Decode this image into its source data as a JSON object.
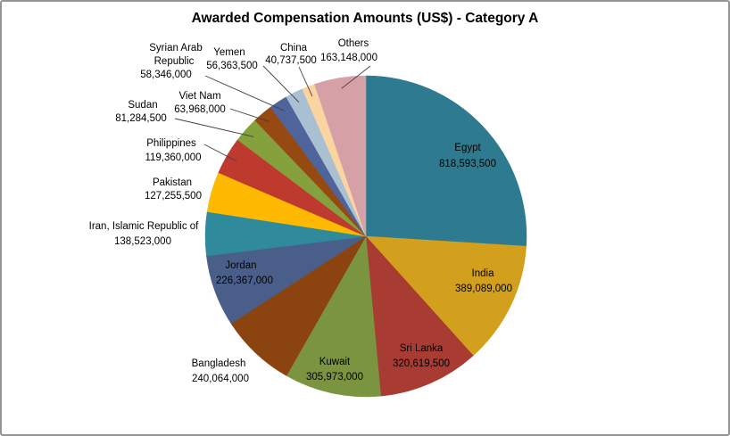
{
  "window": {
    "background": "#FFFFFF",
    "border_color": "#949494"
  },
  "chart_data": {
    "type": "pie",
    "title": "Awarded Compensation Amounts (US$) - Category A",
    "unit": "US$",
    "legend": "none",
    "data_labels": "category name + value",
    "value_format": "#,##0",
    "start_angle_deg": 0,
    "direction": "clockwise",
    "total": 3149692000,
    "label_text_color": "#000000",
    "leader_line_color": "#404040",
    "slices": [
      {
        "label": "Egypt",
        "value": 818593500,
        "color": "#2E7B91",
        "label_position": "inside",
        "leader_line": false
      },
      {
        "label": "India",
        "value": 389089000,
        "color": "#D3A01D",
        "label_position": "inside",
        "leader_line": false
      },
      {
        "label": "Sri Lanka",
        "value": 320619500,
        "color": "#A83C32",
        "label_position": "inside",
        "leader_line": false
      },
      {
        "label": "Kuwait",
        "value": 305973000,
        "color": "#7A943F",
        "label_position": "inside",
        "leader_line": false
      },
      {
        "label": "Bangladesh",
        "value": 240064000,
        "color": "#8B430F",
        "label_position": "outside",
        "leader_line": false
      },
      {
        "label": "Jordan",
        "value": 226367000,
        "color": "#4A5E8A",
        "label_position": "inside",
        "leader_line": false
      },
      {
        "label": "Iran, Islamic Republic of",
        "value": 138523000,
        "color": "#2F8A9C",
        "label_position": "outside",
        "leader_line": false
      },
      {
        "label": "Pakistan",
        "value": 127255500,
        "color": "#FFB900",
        "label_position": "outside",
        "leader_line": false
      },
      {
        "label": "Philippines",
        "value": 119360000,
        "color": "#BE3A2F",
        "label_position": "outside",
        "leader_line": true
      },
      {
        "label": "Sudan",
        "value": 81284500,
        "color": "#85A13E",
        "label_position": "outside",
        "leader_line": true
      },
      {
        "label": "Viet Nam",
        "value": 63968000,
        "color": "#964910",
        "label_position": "outside",
        "leader_line": true
      },
      {
        "label": "Syrian Arab Republic",
        "value": 58346000,
        "color": "#4E649B",
        "label_position": "outside",
        "leader_line": true
      },
      {
        "label": "Yemen",
        "value": 56363500,
        "color": "#A9C0D2",
        "label_position": "outside",
        "leader_line": true
      },
      {
        "label": "China",
        "value": 40737500,
        "color": "#FAD5A0",
        "label_position": "outside",
        "leader_line": true
      },
      {
        "label": "Others",
        "value": 163148000,
        "color": "#D5A0A6",
        "label_position": "outside",
        "leader_line": true
      }
    ]
  }
}
